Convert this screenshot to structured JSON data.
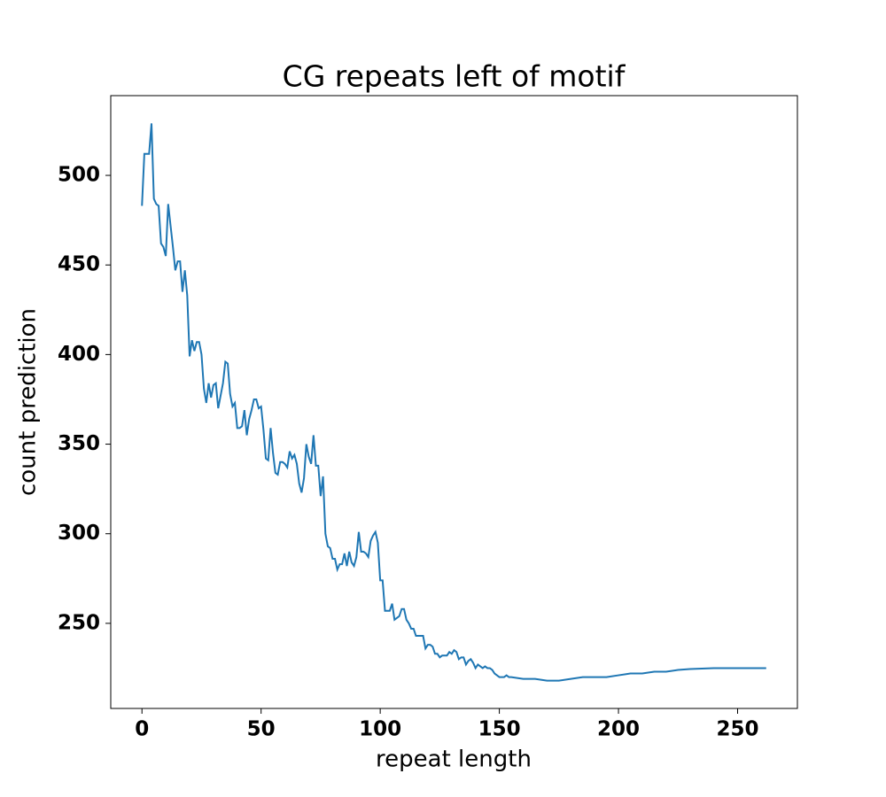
{
  "chart_data": {
    "type": "line",
    "title": "CG repeats left of motif",
    "x_label": "repeat length",
    "y_label": "count prediction",
    "x": [
      0,
      1,
      2,
      3,
      4,
      5,
      6,
      7,
      8,
      9,
      10,
      11,
      12,
      13,
      14,
      15,
      16,
      17,
      18,
      19,
      20,
      21,
      22,
      23,
      24,
      25,
      26,
      27,
      28,
      29,
      30,
      31,
      32,
      33,
      34,
      35,
      36,
      37,
      38,
      39,
      40,
      41,
      42,
      43,
      44,
      45,
      46,
      47,
      48,
      49,
      50,
      51,
      52,
      53,
      54,
      55,
      56,
      57,
      58,
      59,
      60,
      61,
      62,
      63,
      64,
      65,
      66,
      67,
      68,
      69,
      70,
      71,
      72,
      73,
      74,
      75,
      76,
      77,
      78,
      79,
      80,
      81,
      82,
      83,
      84,
      85,
      86,
      87,
      88,
      89,
      90,
      91,
      92,
      93,
      94,
      95,
      96,
      97,
      98,
      99,
      100,
      101,
      102,
      103,
      104,
      105,
      106,
      107,
      108,
      109,
      110,
      111,
      112,
      113,
      114,
      115,
      116,
      117,
      118,
      119,
      120,
      121,
      122,
      123,
      124,
      125,
      126,
      127,
      128,
      129,
      130,
      131,
      132,
      133,
      134,
      135,
      136,
      137,
      138,
      139,
      140,
      141,
      142,
      143,
      144,
      145,
      146,
      147,
      148,
      149,
      150,
      151,
      152,
      153,
      154,
      155,
      160,
      165,
      170,
      175,
      180,
      185,
      190,
      195,
      200,
      205,
      210,
      215,
      220,
      225,
      230,
      240,
      250,
      262
    ],
    "series": [
      {
        "name": "count prediction",
        "color": "#1f77b4",
        "values": [
          483,
          512,
          512,
          512,
          529,
          487,
          484,
          483,
          462,
          460,
          455,
          484,
          472,
          460,
          447,
          452,
          452,
          435,
          447,
          433,
          399,
          408,
          402,
          407,
          407,
          400,
          381,
          373,
          384,
          376,
          383,
          384,
          370,
          377,
          384,
          396,
          395,
          378,
          371,
          373,
          359,
          359,
          360,
          369,
          355,
          364,
          369,
          375,
          375,
          370,
          371,
          358,
          342,
          341,
          359,
          345,
          334,
          333,
          340,
          340,
          339,
          337,
          346,
          342,
          344,
          339,
          328,
          323,
          331,
          350,
          343,
          339,
          355,
          338,
          338,
          321,
          332,
          300,
          293,
          292,
          286,
          286,
          280,
          283,
          283,
          289,
          282,
          290,
          284,
          282,
          287,
          301,
          290,
          290,
          289,
          287,
          296,
          299,
          301,
          295,
          274,
          274,
          257,
          257,
          257,
          261,
          252,
          253,
          254,
          258,
          258,
          252,
          250,
          247,
          247,
          243,
          243,
          243,
          243,
          236,
          238,
          238,
          237,
          233,
          233,
          231,
          232,
          232,
          232,
          234,
          233,
          235,
          234,
          230,
          231,
          231,
          227,
          229,
          230,
          228,
          225,
          227,
          226,
          225,
          226,
          225,
          225,
          224,
          222,
          221,
          220,
          220,
          220,
          221,
          220,
          220,
          219,
          219,
          218,
          218,
          219,
          220,
          220,
          220,
          221,
          222,
          222,
          223,
          223,
          224,
          224.5,
          225,
          225,
          225
        ]
      }
    ],
    "xlim": [
      -13.1,
      275.1
    ],
    "xticks": [
      0,
      50,
      100,
      150,
      200,
      250
    ],
    "ylim": [
      202.5,
      544.5
    ],
    "yticks": [
      250,
      300,
      350,
      400,
      450,
      500
    ],
    "grid": false
  }
}
